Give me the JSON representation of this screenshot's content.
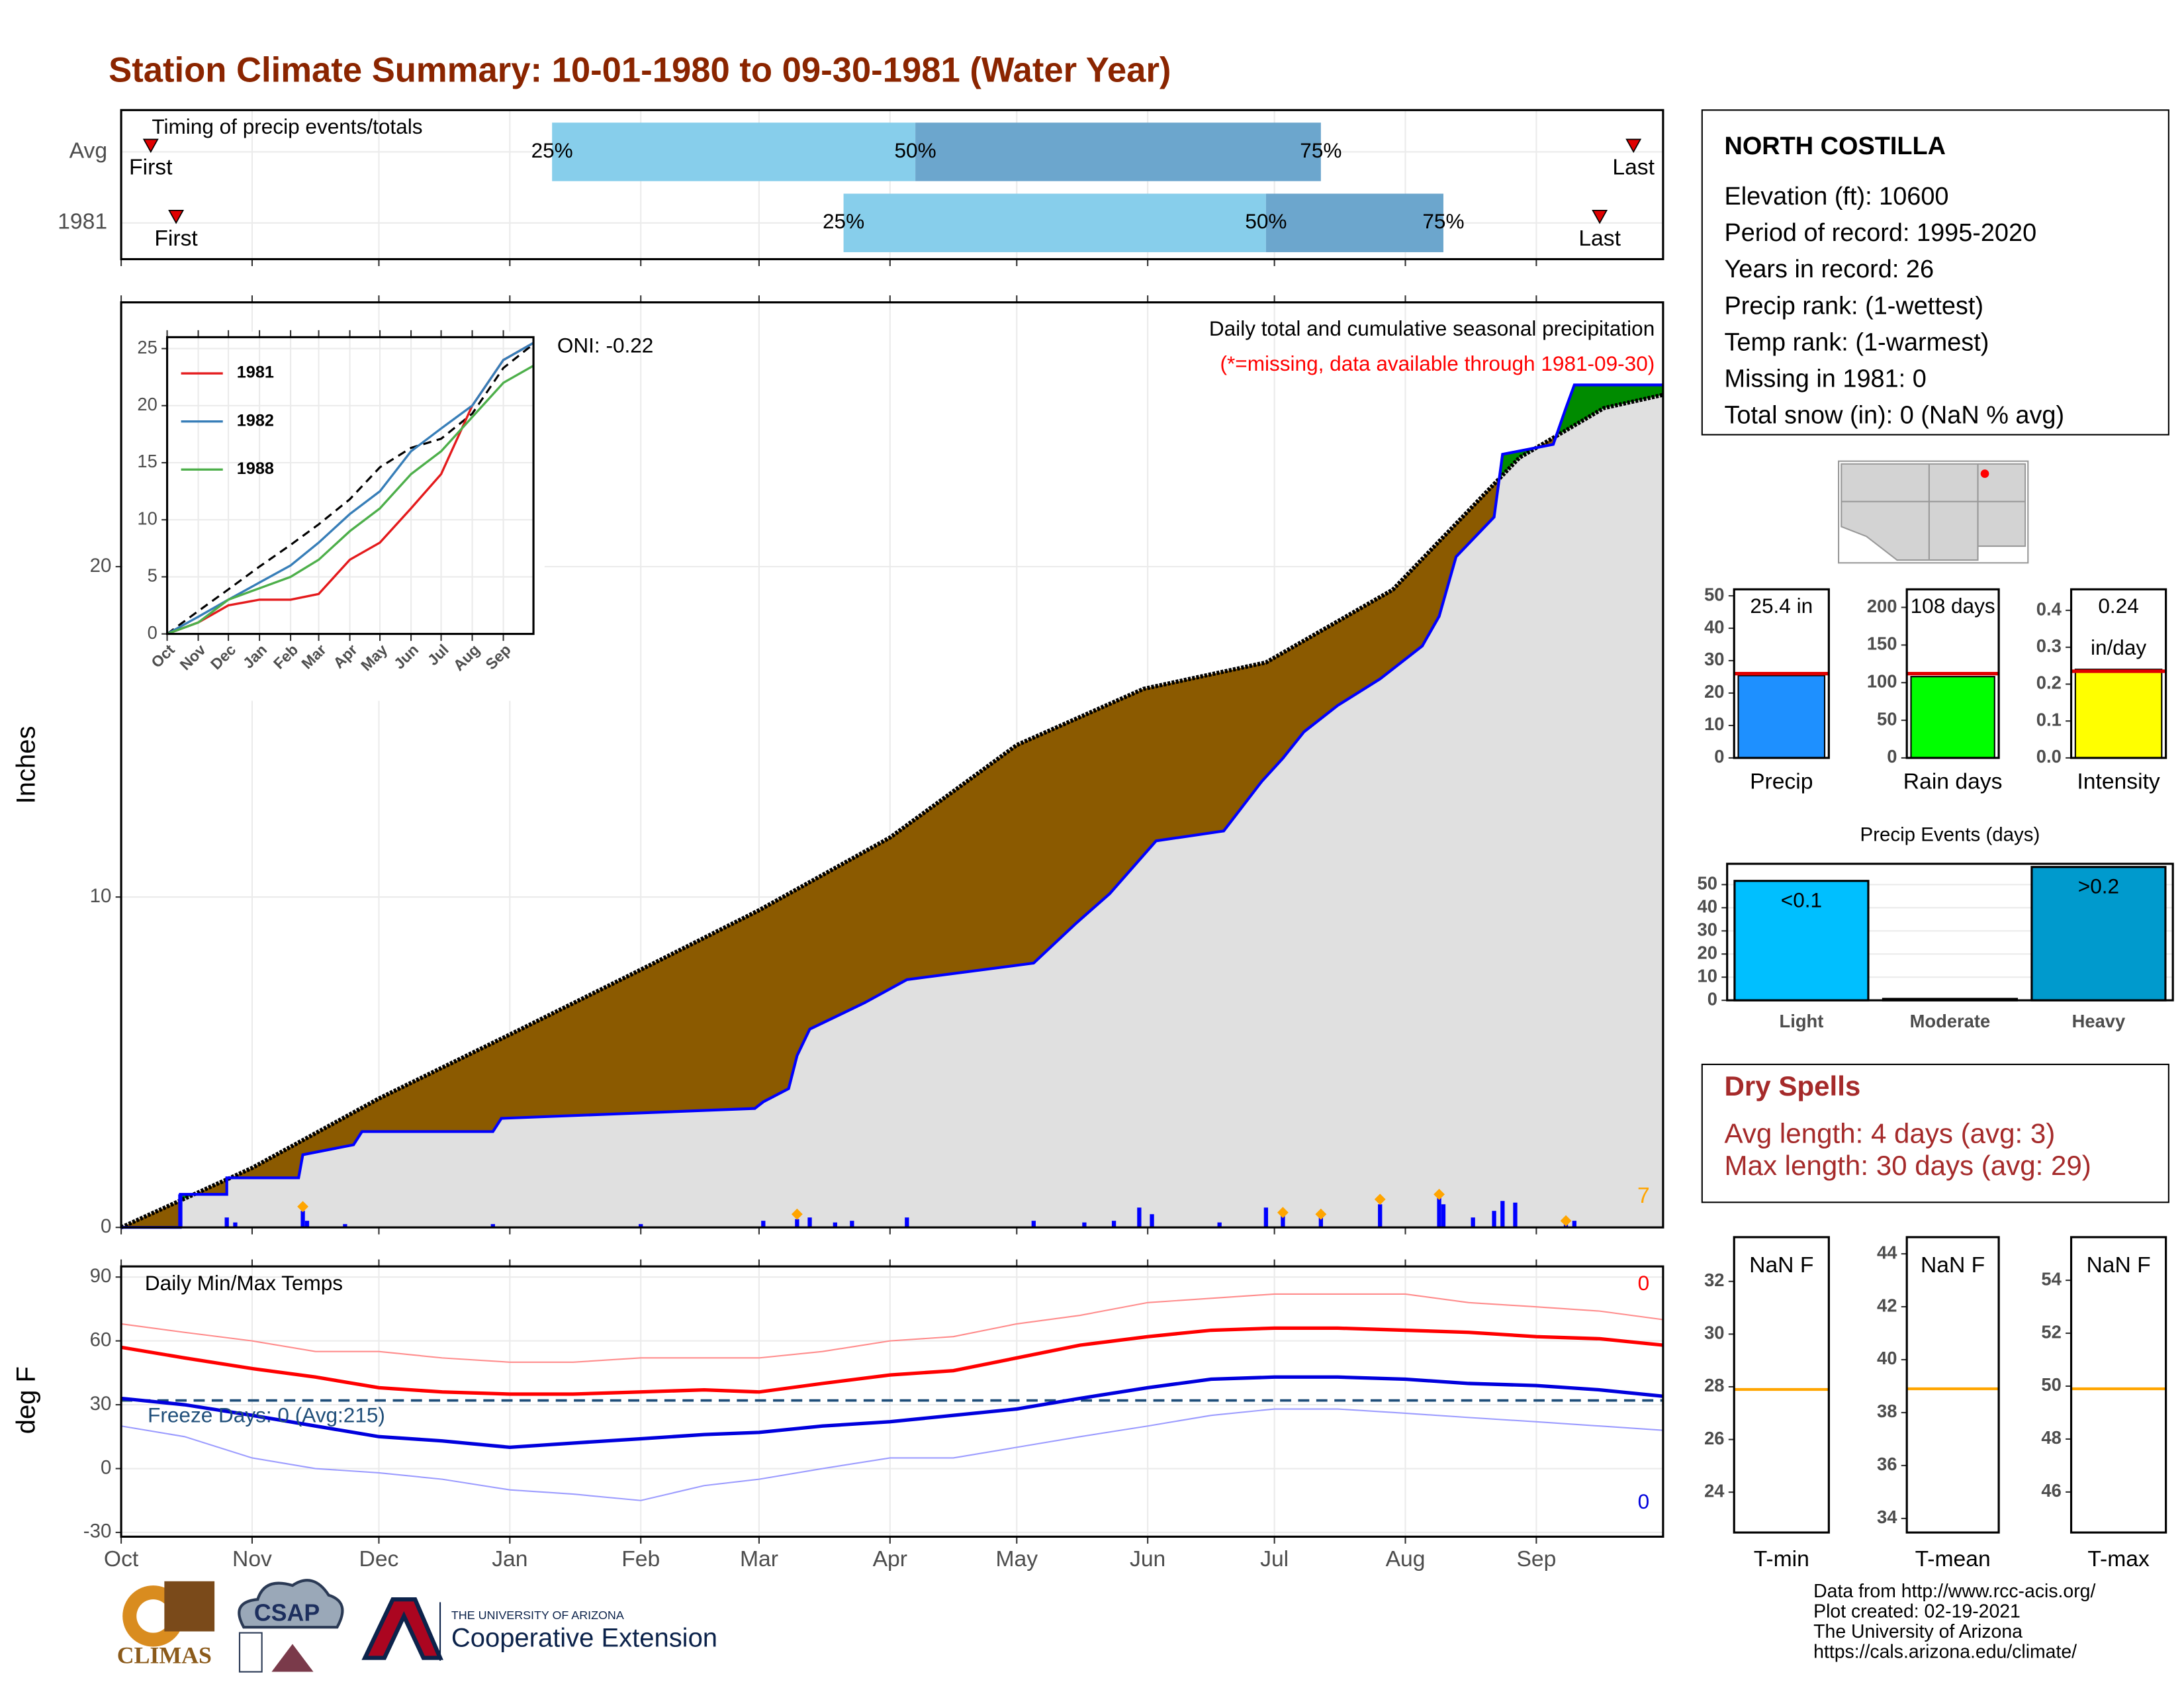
{
  "title": "Station Climate Summary: 10-01-1980 to 09-30-1981 (Water Year)",
  "station": {
    "name": "NORTH COSTILLA",
    "lines": [
      "Elevation (ft): 10600",
      "Period of record: 1995-2020",
      "Years in record: 26",
      "Precip rank:  (1-wettest)",
      "Temp rank:  (1-warmest)",
      "Missing in 1981: 0",
      "Total snow (in): 0 (NaN % avg)"
    ]
  },
  "dry_spells": {
    "title": "Dry Spells",
    "lines": [
      "Avg length: 4 days (avg: 3)",
      "Max length: 30 days (avg: 29)"
    ]
  },
  "footer": [
    "Data from http://www.rcc-acis.org/",
    "Plot created: 02-19-2021",
    "The University of Arizona",
    "https://cals.arizona.edu/climate/"
  ],
  "logos": {
    "climas": "CLIMAS",
    "csap": "CSAP",
    "university": "THE UNIVERSITY OF ARIZONA",
    "extension": "Cooperative Extension"
  },
  "chart_data": [
    {
      "type": "timing",
      "title": "Timing of precip events/totals",
      "categories": [
        "Avg",
        "1981"
      ],
      "first": [
        7,
        13
      ],
      "q25": [
        102,
        171
      ],
      "q50": [
        188,
        271
      ],
      "q75": [
        284,
        313
      ],
      "last": [
        358,
        350
      ],
      "labels": {
        "first": "First",
        "last": "Last",
        "q25": "25%",
        "q50": "50%",
        "q75": "75%"
      },
      "colors": [
        "#87ceeb",
        "#6ca6cd"
      ],
      "marker_color": "#e00000",
      "xlim": [
        0,
        365
      ],
      "xticks": [
        0,
        31,
        61,
        92,
        123,
        151,
        182,
        212,
        243,
        273,
        304,
        335
      ]
    },
    {
      "type": "cumulative",
      "subtitle": "Daily total and cumulative seasonal precipitation",
      "note": "(*=missing, data available through 1981-09-30)",
      "oni": "ONI: -0.22",
      "count_label": "7",
      "ylabel": "Inches",
      "series": [
        {
          "color": "#000000",
          "x": [
            0,
            31,
            61,
            93,
            123,
            151,
            182,
            212,
            242,
            271,
            301,
            331,
            351,
            365
          ],
          "values": [
            0,
            1.8,
            3.9,
            5.9,
            7.8,
            9.6,
            11.8,
            14.6,
            16.3,
            17.1,
            19.3,
            23.3,
            24.8,
            25.2
          ]
        },
        {
          "color": "#0000ff",
          "x": [
            0,
            14,
            14,
            25,
            25,
            42,
            43,
            55,
            57,
            88,
            90,
            150,
            152,
            158,
            160,
            163,
            176,
            186,
            216,
            226,
            234,
            245,
            261,
            270,
            275,
            280,
            288,
            298,
            308,
            312,
            316,
            325,
            327,
            339,
            342,
            344,
            365
          ],
          "values": [
            0,
            0,
            1.0,
            1.0,
            1.5,
            1.5,
            2.2,
            2.5,
            2.9,
            2.9,
            3.3,
            3.6,
            3.8,
            4.2,
            5.2,
            6.0,
            6.8,
            7.5,
            8.0,
            9.2,
            10.1,
            11.7,
            12.0,
            13.5,
            14.2,
            15.0,
            15.8,
            16.6,
            17.6,
            18.5,
            20.3,
            21.5,
            23.4,
            23.7,
            24.8,
            25.5,
            25.5
          ]
        }
      ],
      "deficit_color": "#8b5a00",
      "surplus_color": "#008b00",
      "area_color": "#e0e0e0",
      "daily": {
        "color": "#0000ff",
        "x": [
          14,
          25,
          27,
          43,
          44,
          53,
          88,
          123,
          152,
          160,
          163,
          169,
          173,
          186,
          216,
          228,
          235,
          241,
          244,
          260,
          271,
          275,
          284,
          298,
          312,
          313,
          320,
          325,
          327,
          330,
          342,
          344
        ],
        "values": [
          1.0,
          0.3,
          0.15,
          0.5,
          0.2,
          0.1,
          0.1,
          0.1,
          0.2,
          0.25,
          0.3,
          0.15,
          0.2,
          0.3,
          0.2,
          0.15,
          0.2,
          0.6,
          0.4,
          0.15,
          0.6,
          0.35,
          0.4,
          0.7,
          0.9,
          0.7,
          0.3,
          0.5,
          0.8,
          0.75,
          0.3,
          0.2
        ]
      },
      "markers": {
        "color": "#ffa500",
        "x": [
          43,
          160,
          275,
          284,
          298,
          312,
          342
        ],
        "values": [
          0.63,
          0.4,
          0.45,
          0.4,
          0.85,
          1.0,
          0.2
        ]
      },
      "xlim": [
        0,
        365
      ],
      "xticks": [
        0,
        31,
        61,
        92,
        123,
        151,
        182,
        212,
        243,
        273,
        304,
        335
      ],
      "ylim": [
        0,
        28
      ],
      "yticks": [
        0,
        10,
        20
      ],
      "grid": true
    },
    {
      "type": "inset",
      "x": [
        0,
        31,
        61,
        92,
        123,
        151,
        182,
        212,
        243,
        273,
        304,
        335,
        365
      ],
      "avg": {
        "color": "#000000",
        "values": [
          0,
          2,
          3.9,
          5.9,
          7.8,
          9.6,
          11.8,
          14.6,
          16.3,
          17.1,
          19.3,
          23.3,
          25.4
        ]
      },
      "series": [
        {
          "name": "1981",
          "color": "#e41a1c",
          "values": [
            0,
            1,
            2.5,
            3,
            3,
            3.5,
            6.5,
            8,
            11,
            14,
            20,
            24,
            25.5
          ]
        },
        {
          "name": "1982",
          "color": "#377eb8",
          "values": [
            0,
            1.5,
            3,
            4.5,
            6,
            8,
            10.5,
            12.5,
            16,
            18,
            20,
            24,
            25.5
          ]
        },
        {
          "name": "1988",
          "color": "#4daf4a",
          "values": [
            0,
            1,
            3,
            4,
            5,
            6.5,
            9,
            11,
            14,
            16,
            19,
            22,
            23.5
          ]
        }
      ],
      "xlim": [
        0,
        365
      ],
      "xticks": [
        {
          "value": 0,
          "label": "Oct"
        },
        {
          "value": 31,
          "label": "Nov"
        },
        {
          "value": 61,
          "label": "Dec"
        },
        {
          "value": 92,
          "label": "Jan"
        },
        {
          "value": 123,
          "label": "Feb"
        },
        {
          "value": 151,
          "label": "Mar"
        },
        {
          "value": 182,
          "label": "Apr"
        },
        {
          "value": 212,
          "label": "May"
        },
        {
          "value": 243,
          "label": "Jun"
        },
        {
          "value": 273,
          "label": "Jul"
        },
        {
          "value": 304,
          "label": "Aug"
        },
        {
          "value": 335,
          "label": "Sep"
        }
      ],
      "ylim": [
        0,
        26
      ],
      "yticks": [
        0,
        5,
        10,
        15,
        20,
        25
      ],
      "grid": true
    },
    {
      "type": "temps",
      "title": "Daily Min/Max Temps",
      "ylabel": "deg F",
      "freeze_line": 32,
      "freeze_color": "#1f4e79",
      "freeze_label": "Freeze Days: 0 (Avg:215)",
      "max_count_label": "0",
      "min_count_label": "0",
      "x": [
        0,
        15,
        31,
        46,
        61,
        76,
        92,
        107,
        123,
        138,
        151,
        166,
        182,
        197,
        212,
        227,
        243,
        258,
        273,
        288,
        304,
        319,
        335,
        350,
        365
      ],
      "series": [
        {
          "color": "#ff8c8c",
          "values": [
            68,
            64,
            60,
            55,
            55,
            52,
            50,
            50,
            52,
            52,
            52,
            55,
            60,
            62,
            68,
            72,
            78,
            80,
            82,
            82,
            82,
            78,
            76,
            74,
            70
          ]
        },
        {
          "color": "#9c9cff",
          "values": [
            20,
            15,
            5,
            0,
            -2,
            -5,
            -10,
            -12,
            -15,
            -8,
            -5,
            0,
            5,
            5,
            10,
            15,
            20,
            25,
            28,
            28,
            26,
            24,
            22,
            20,
            18
          ]
        },
        {
          "color": "#ff0000",
          "values": [
            57,
            52,
            47,
            43,
            38,
            36,
            35,
            35,
            36,
            37,
            36,
            40,
            44,
            46,
            52,
            58,
            62,
            65,
            66,
            66,
            65,
            64,
            62,
            61,
            58
          ]
        },
        {
          "color": "#0000dd",
          "values": [
            33,
            30,
            25,
            20,
            15,
            13,
            10,
            12,
            14,
            16,
            17,
            20,
            22,
            25,
            28,
            33,
            38,
            42,
            43,
            43,
            42,
            40,
            39,
            37,
            34
          ]
        }
      ],
      "xlim": [
        0,
        365
      ],
      "xticks": [
        {
          "value": 0,
          "label": "Oct"
        },
        {
          "value": 31,
          "label": "Nov"
        },
        {
          "value": 61,
          "label": "Dec"
        },
        {
          "value": 92,
          "label": "Jan"
        },
        {
          "value": 123,
          "label": "Feb"
        },
        {
          "value": 151,
          "label": "Mar"
        },
        {
          "value": 182,
          "label": "Apr"
        },
        {
          "value": 212,
          "label": "May"
        },
        {
          "value": 243,
          "label": "Jun"
        },
        {
          "value": 273,
          "label": "Jul"
        },
        {
          "value": 304,
          "label": "Aug"
        },
        {
          "value": 335,
          "label": "Sep"
        }
      ],
      "ylim": [
        -32,
        95
      ],
      "yticks": [
        -30,
        0,
        30,
        60,
        90
      ],
      "grid": true
    },
    {
      "type": "bar",
      "categories": [
        "Precip"
      ],
      "values": [
        25.4
      ],
      "value_labels": [
        "25.4 in"
      ],
      "reference": 26,
      "reference_color": "#e00000",
      "color": "#1e90ff",
      "ylim": [
        0,
        52
      ],
      "yticks": [
        0,
        10,
        20,
        30,
        40,
        50
      ]
    },
    {
      "type": "bar",
      "categories": [
        "Rain days"
      ],
      "values": [
        108
      ],
      "value_labels": [
        "108 days"
      ],
      "reference": 112,
      "reference_color": "#e00000",
      "color": "#00ff00",
      "ylim": [
        0,
        224
      ],
      "yticks": [
        0,
        50,
        100,
        150,
        200
      ]
    },
    {
      "type": "bar",
      "categories": [
        "Intensity"
      ],
      "values": [
        0.24
      ],
      "value_labels": [
        "0.24"
      ],
      "unit_label": "in/day",
      "reference": 0.235,
      "reference_color": "#e00000",
      "color": "#ffff00",
      "ylim": [
        0,
        0.457
      ],
      "yticks": [
        {
          "value": 0,
          "label": "0.0"
        },
        0.1,
        0.2,
        0.3,
        0.4
      ]
    },
    {
      "type": "events",
      "title": "Precip Events (days)",
      "categories": [
        "Light",
        "Moderate",
        "Heavy"
      ],
      "values": [
        51,
        0,
        57
      ],
      "bar_labels": [
        "<0.1",
        null,
        ">0.2"
      ],
      "colors": [
        "#00bfff",
        "#1e90ff",
        "#009acd"
      ],
      "ylim": [
        0,
        59
      ],
      "yticks": [
        0,
        10,
        20,
        30,
        40,
        50
      ],
      "grid": true
    },
    {
      "type": "level",
      "categories": [
        "T-min"
      ],
      "values": [
        27.9
      ],
      "label": "NaN F",
      "color": "#ffa500",
      "ylim": [
        22.47,
        33.68
      ],
      "yticks": [
        24,
        26,
        28,
        30,
        32
      ]
    },
    {
      "type": "level",
      "categories": [
        "T-mean"
      ],
      "values": [
        38.9
      ],
      "label": "NaN F",
      "color": "#ffa500",
      "ylim": [
        33.47,
        44.63
      ],
      "yticks": [
        34,
        36,
        38,
        40,
        42,
        44
      ]
    },
    {
      "type": "level",
      "categories": [
        "T-max"
      ],
      "values": [
        49.9
      ],
      "label": "NaN F",
      "color": "#ffa500",
      "ylim": [
        44.47,
        55.63
      ],
      "yticks": [
        46,
        48,
        50,
        52,
        54
      ]
    }
  ]
}
